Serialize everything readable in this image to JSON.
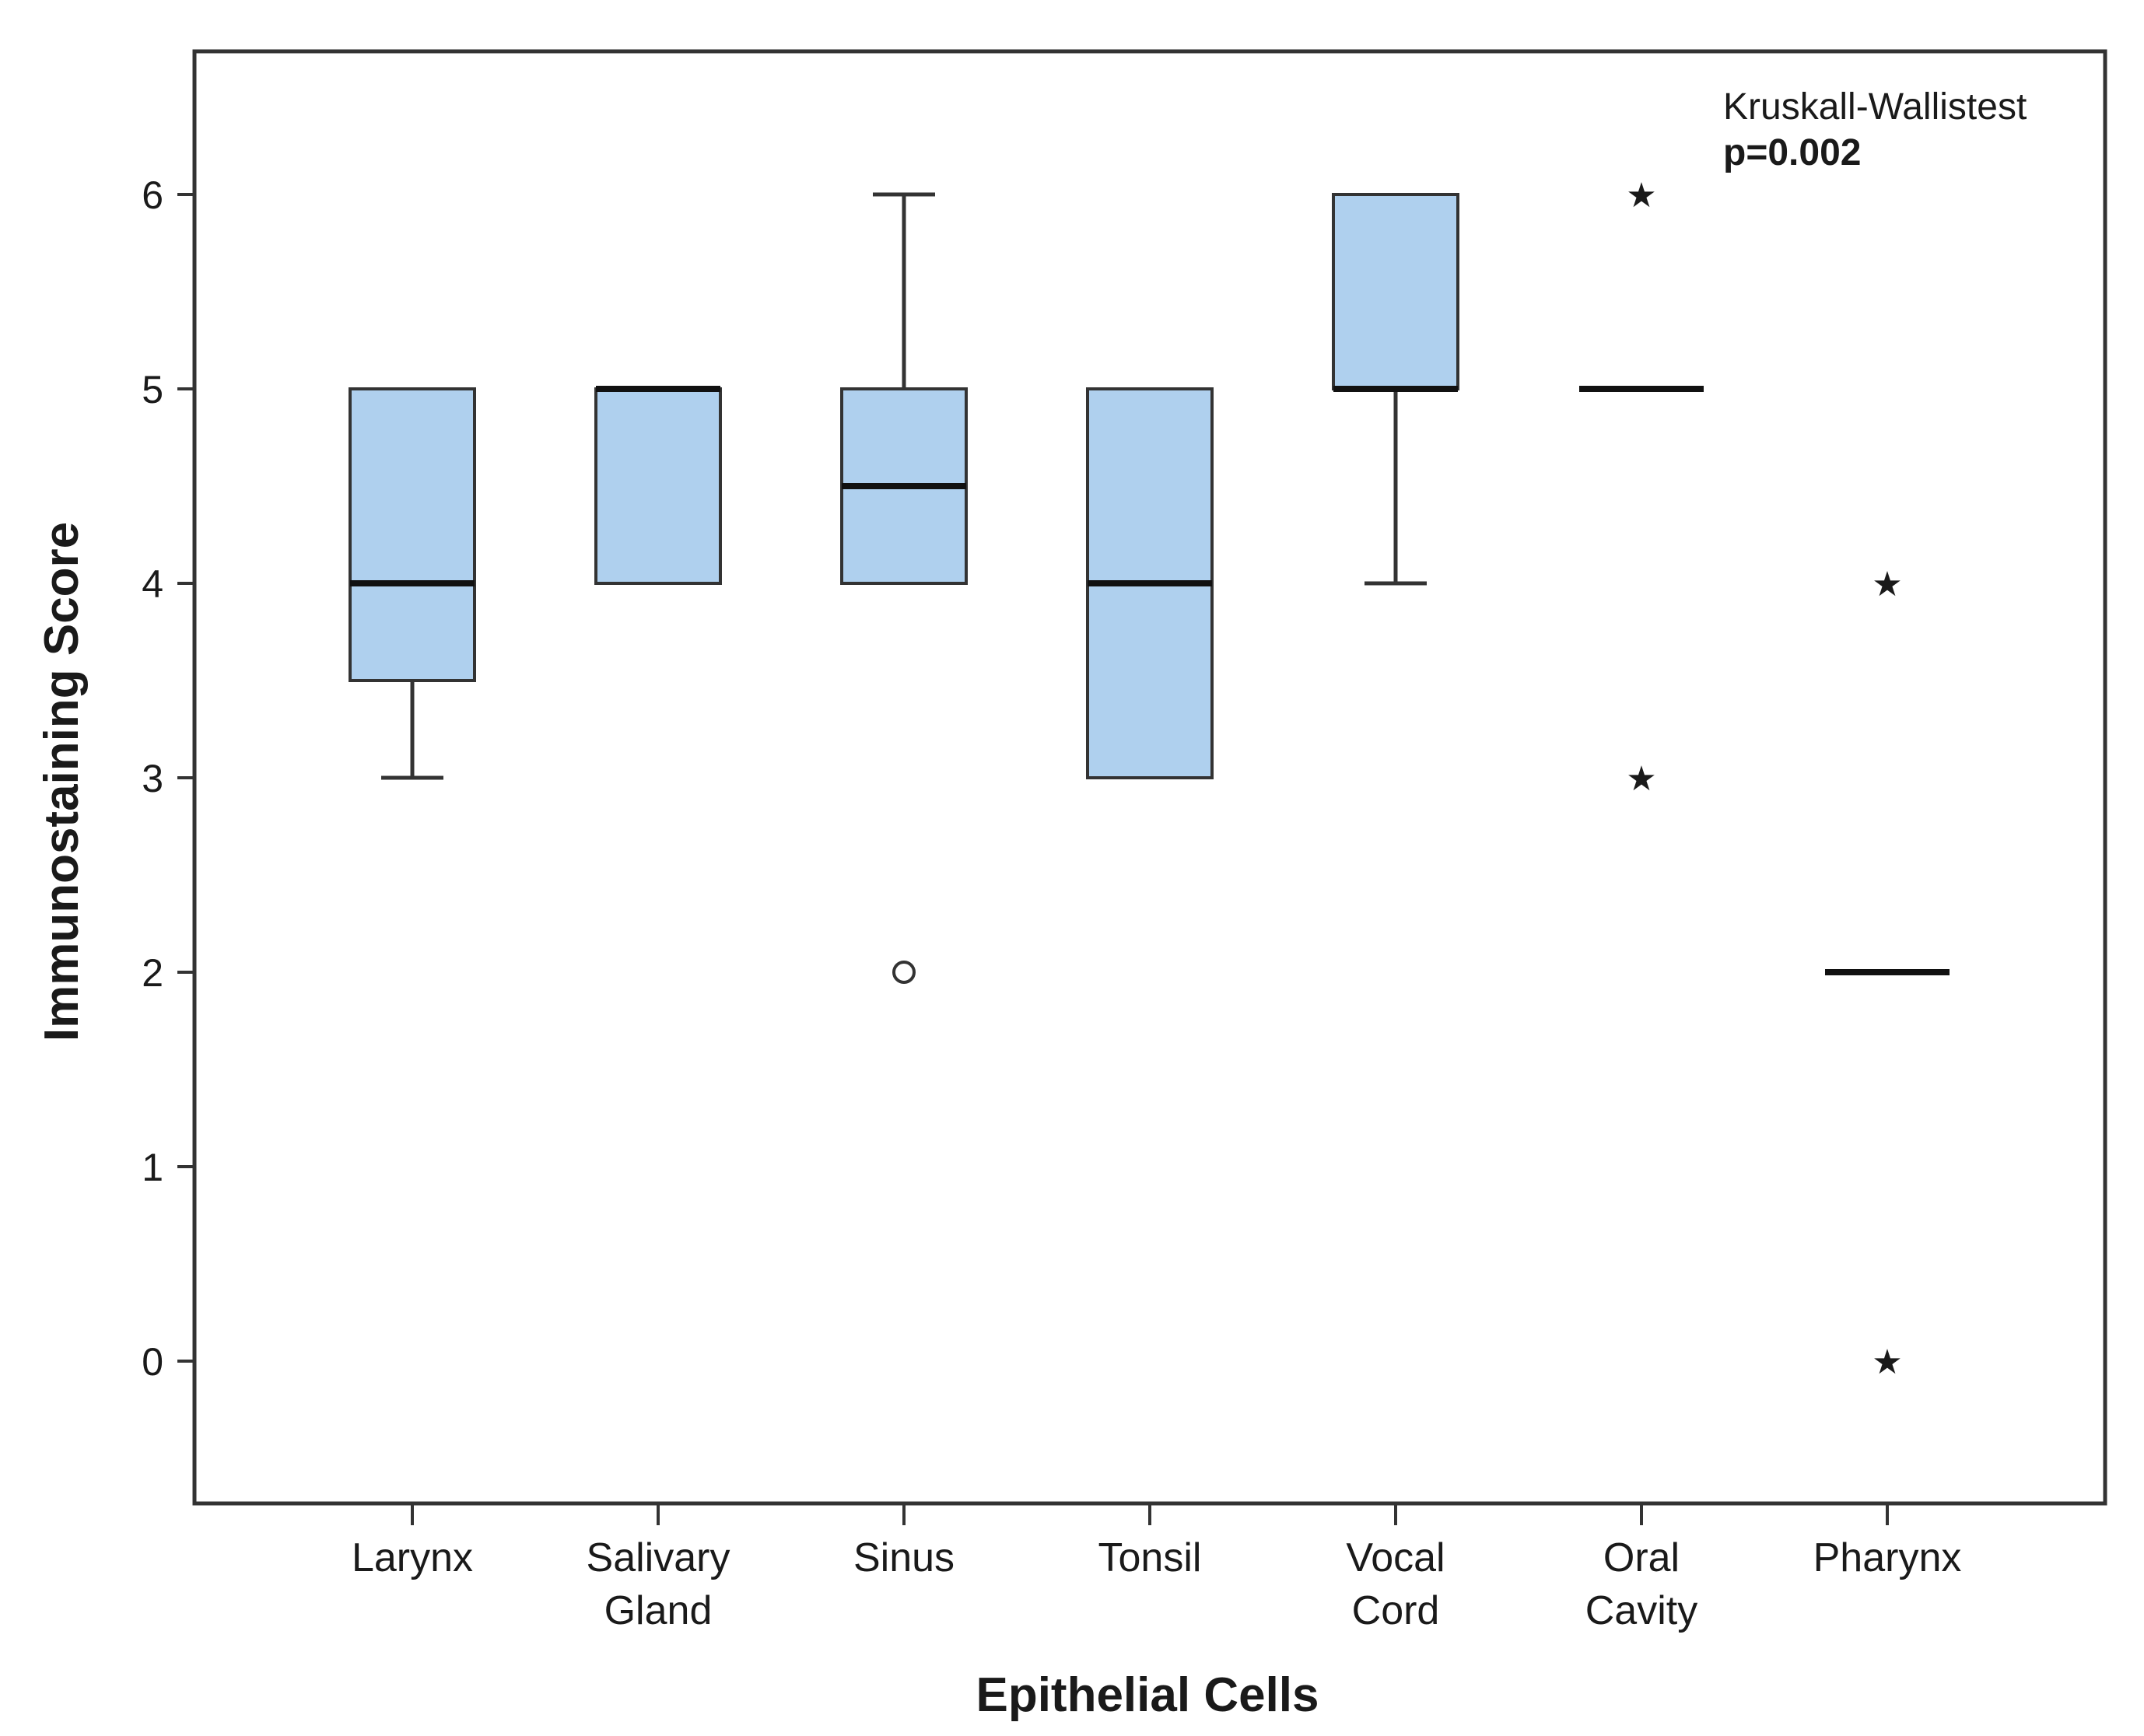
{
  "chart_data": {
    "type": "boxplot",
    "xlabel": "Epithelial Cells",
    "ylabel": "Immunostaining Score",
    "ylim": [
      -0.75,
      6.75
    ],
    "yticks": [
      0,
      1,
      2,
      3,
      4,
      5,
      6
    ],
    "grid": false,
    "box_color": "#afd0ee",
    "annotation": {
      "test": "Kruskall-Wallistest",
      "p_value": "p=0.002"
    },
    "categories": [
      {
        "lines": [
          "Larynx"
        ],
        "q1": 3.5,
        "median": 4,
        "q3": 5,
        "whisker_low": 3,
        "whisker_high": 5,
        "outliers": [],
        "extremes": []
      },
      {
        "lines": [
          "Salivary",
          "Gland"
        ],
        "q1": 4,
        "median": 5,
        "q3": 5,
        "whisker_low": 4,
        "whisker_high": 5,
        "outliers": [],
        "extremes": []
      },
      {
        "lines": [
          "Sinus"
        ],
        "q1": 4,
        "median": 4.5,
        "q3": 5,
        "whisker_low": 4,
        "whisker_high": 6,
        "outliers": [
          2
        ],
        "extremes": []
      },
      {
        "lines": [
          "Tonsil"
        ],
        "q1": 3,
        "median": 4,
        "q3": 5,
        "whisker_low": 3,
        "whisker_high": 5,
        "outliers": [],
        "extremes": []
      },
      {
        "lines": [
          "Vocal",
          "Cord"
        ],
        "q1": 5,
        "median": 5,
        "q3": 6,
        "whisker_low": 4,
        "whisker_high": 6,
        "outliers": [],
        "extremes": []
      },
      {
        "lines": [
          "Oral",
          "Cavity"
        ],
        "q1": 5,
        "median": 5,
        "q3": 5,
        "whisker_low": 5,
        "whisker_high": 5,
        "outliers": [],
        "extremes": [
          6,
          3
        ]
      },
      {
        "lines": [
          "Pharynx"
        ],
        "q1": 2,
        "median": 2,
        "q3": 2,
        "whisker_low": 2,
        "whisker_high": 2,
        "outliers": [],
        "extremes": [
          4,
          0
        ]
      }
    ]
  }
}
